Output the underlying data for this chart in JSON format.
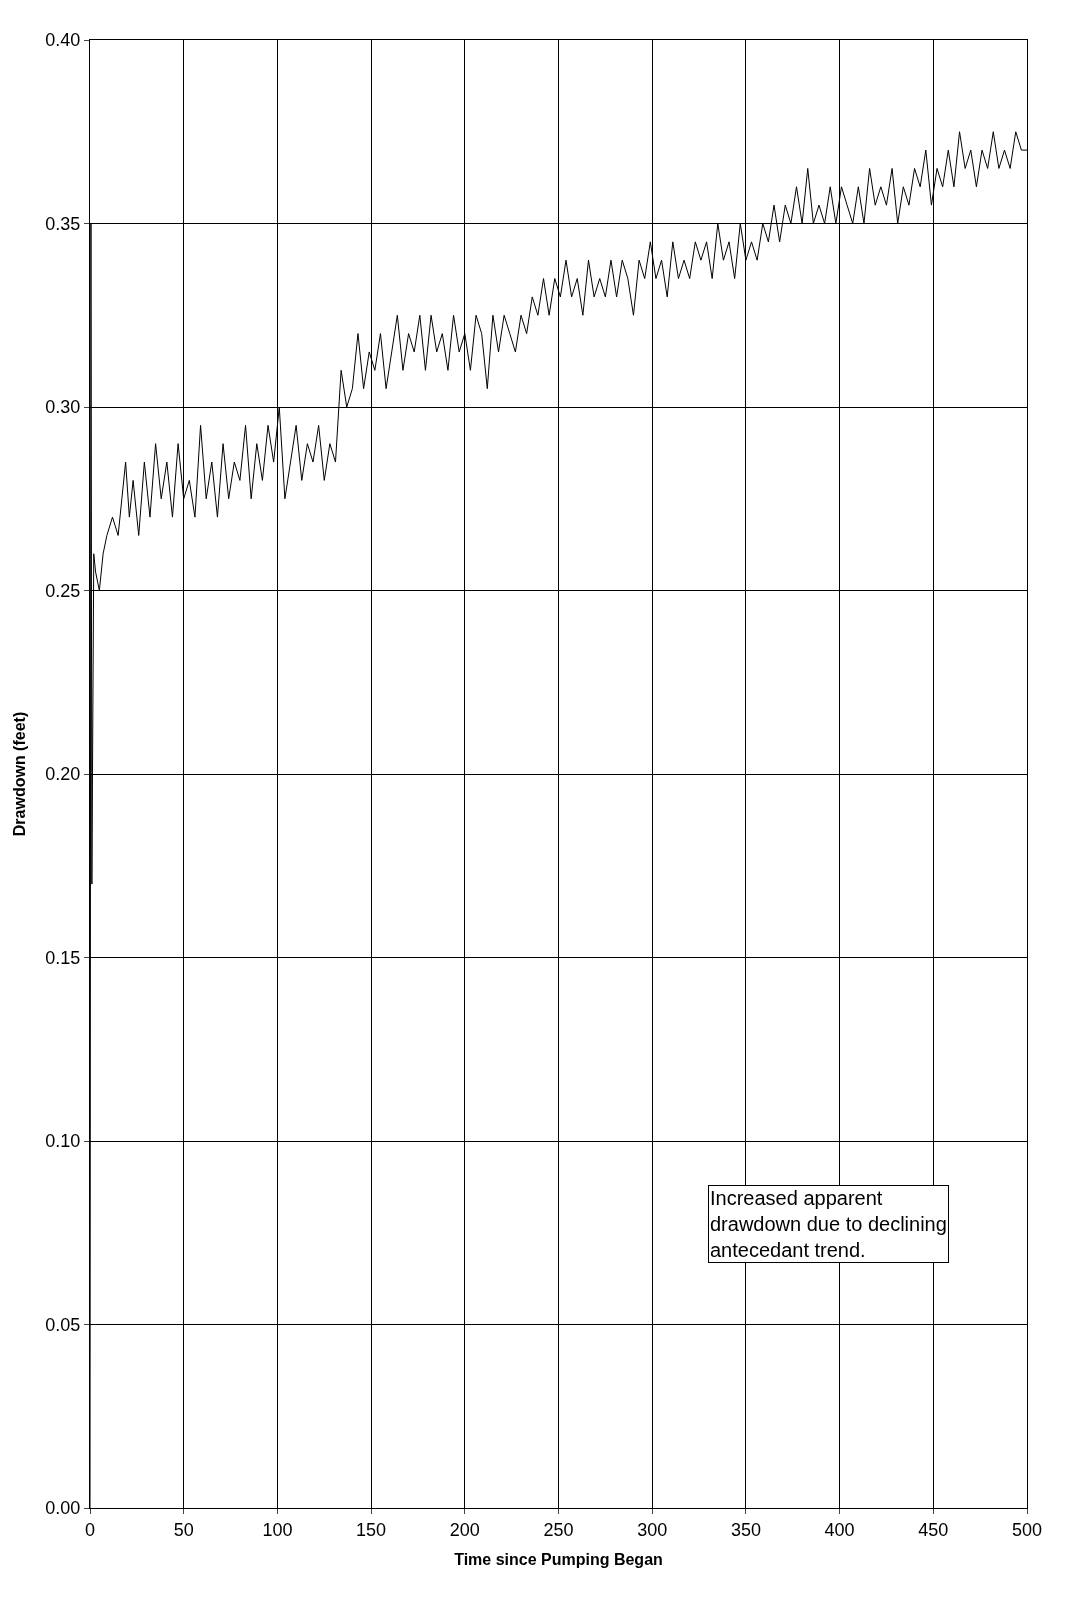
{
  "chart_data": {
    "type": "line",
    "xlabel": "Time since Pumping Began",
    "ylabel": "Drawdown (feet)",
    "annotations": [
      "Increased apparent\ndrawdown due to declining\nantecedant trend."
    ],
    "xlim": [
      0,
      500
    ],
    "xticks": [
      0,
      50,
      100,
      150,
      200,
      250,
      300,
      350,
      400,
      450,
      500
    ],
    "ylim": [
      0,
      0.4
    ],
    "yticks": [
      {
        "value": 0,
        "label": "0.00"
      },
      {
        "value": 0.05,
        "label": "0.05"
      },
      {
        "value": 0.1,
        "label": "0.10"
      },
      {
        "value": 0.15,
        "label": "0.15"
      },
      {
        "value": 0.2,
        "label": "0.20"
      },
      {
        "value": 0.25,
        "label": "0.25"
      },
      {
        "value": 0.3,
        "label": "0.30"
      },
      {
        "value": 0.35,
        "label": "0.35"
      },
      {
        "value": 0.4,
        "label": "0.40"
      }
    ],
    "grid": true,
    "marker": "none",
    "line_style": "solid",
    "series": [
      {
        "color": "#000000",
        "x": [
          0,
          0.5,
          1,
          2,
          3,
          5,
          7,
          9,
          12,
          15,
          17,
          19,
          21,
          23,
          26,
          29,
          32,
          35,
          38,
          41,
          44,
          47,
          50,
          53,
          56,
          59,
          62,
          65,
          68,
          71,
          74,
          77,
          80,
          83,
          86,
          89,
          92,
          95,
          98,
          101,
          104,
          107,
          110,
          113,
          116,
          119,
          122,
          125,
          128,
          131,
          134,
          137,
          140,
          143,
          146,
          149,
          152,
          155,
          158,
          161,
          164,
          167,
          170,
          173,
          176,
          179,
          182,
          185,
          188,
          191,
          194,
          197,
          200,
          203,
          206,
          209,
          212,
          215,
          218,
          221,
          224,
          227,
          230,
          233,
          236,
          239,
          242,
          245,
          248,
          251,
          254,
          257,
          260,
          263,
          266,
          269,
          272,
          275,
          278,
          281,
          284,
          287,
          290,
          293,
          296,
          299,
          302,
          305,
          308,
          311,
          314,
          317,
          320,
          323,
          326,
          329,
          332,
          335,
          338,
          341,
          344,
          347,
          350,
          353,
          356,
          359,
          362,
          365,
          368,
          371,
          374,
          377,
          380,
          383,
          386,
          389,
          392,
          395,
          398,
          401,
          404,
          407,
          410,
          413,
          416,
          419,
          422,
          425,
          428,
          431,
          434,
          437,
          440,
          443,
          446,
          449,
          452,
          455,
          458,
          461,
          464,
          467,
          470,
          473,
          476,
          479,
          482,
          485,
          488,
          491,
          494,
          497,
          500
        ],
        "values": [
          0.0,
          0.35,
          0.17,
          0.26,
          0.255,
          0.25,
          0.26,
          0.265,
          0.27,
          0.265,
          0.275,
          0.285,
          0.27,
          0.28,
          0.265,
          0.285,
          0.27,
          0.29,
          0.275,
          0.285,
          0.27,
          0.29,
          0.275,
          0.28,
          0.27,
          0.295,
          0.275,
          0.285,
          0.27,
          0.29,
          0.275,
          0.285,
          0.28,
          0.295,
          0.275,
          0.29,
          0.28,
          0.295,
          0.285,
          0.3,
          0.275,
          0.285,
          0.295,
          0.28,
          0.29,
          0.285,
          0.295,
          0.28,
          0.29,
          0.285,
          0.31,
          0.3,
          0.305,
          0.32,
          0.305,
          0.315,
          0.31,
          0.32,
          0.305,
          0.315,
          0.325,
          0.31,
          0.32,
          0.315,
          0.325,
          0.31,
          0.325,
          0.315,
          0.32,
          0.31,
          0.325,
          0.315,
          0.32,
          0.31,
          0.325,
          0.32,
          0.305,
          0.325,
          0.315,
          0.325,
          0.32,
          0.315,
          0.325,
          0.32,
          0.33,
          0.325,
          0.335,
          0.325,
          0.335,
          0.33,
          0.34,
          0.33,
          0.335,
          0.325,
          0.34,
          0.33,
          0.335,
          0.33,
          0.34,
          0.33,
          0.34,
          0.335,
          0.325,
          0.34,
          0.335,
          0.345,
          0.335,
          0.34,
          0.33,
          0.345,
          0.335,
          0.34,
          0.335,
          0.345,
          0.34,
          0.345,
          0.335,
          0.35,
          0.34,
          0.345,
          0.335,
          0.35,
          0.34,
          0.345,
          0.34,
          0.35,
          0.345,
          0.355,
          0.345,
          0.355,
          0.35,
          0.36,
          0.35,
          0.365,
          0.35,
          0.355,
          0.35,
          0.36,
          0.35,
          0.36,
          0.355,
          0.35,
          0.36,
          0.35,
          0.365,
          0.355,
          0.36,
          0.355,
          0.365,
          0.35,
          0.36,
          0.355,
          0.365,
          0.36,
          0.37,
          0.355,
          0.365,
          0.36,
          0.37,
          0.36,
          0.375,
          0.365,
          0.37,
          0.36,
          0.37,
          0.365,
          0.375,
          0.365,
          0.37,
          0.365,
          0.375,
          0.37,
          0.37
        ]
      }
    ]
  }
}
